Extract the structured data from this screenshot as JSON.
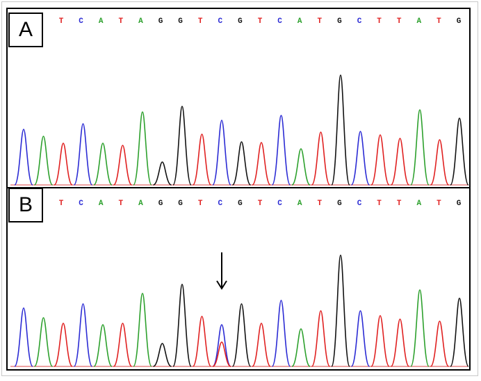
{
  "panels": [
    {
      "label": "A",
      "sequence": [
        "T",
        "C",
        "A",
        "T",
        "A",
        "G",
        "G",
        "T",
        "C",
        "G",
        "T",
        "C",
        "A",
        "T",
        "G",
        "C",
        "T",
        "T",
        "A",
        "T",
        "G"
      ],
      "peaks": [
        {
          "base": "C",
          "height": 80
        },
        {
          "base": "A",
          "height": 70
        },
        {
          "base": "T",
          "height": 60
        },
        {
          "base": "C",
          "height": 88
        },
        {
          "base": "A",
          "height": 60
        },
        {
          "base": "T",
          "height": 57
        },
        {
          "base": "A",
          "height": 105
        },
        {
          "base": "G",
          "height": 33
        },
        {
          "base": "G",
          "height": 113
        },
        {
          "base": "T",
          "height": 73
        },
        {
          "base": "C",
          "height": 93
        },
        {
          "base": "G",
          "height": 62
        },
        {
          "base": "T",
          "height": 61
        },
        {
          "base": "C",
          "height": 100
        },
        {
          "base": "A",
          "height": 52
        },
        {
          "base": "T",
          "height": 76
        },
        {
          "base": "G",
          "height": 158
        },
        {
          "base": "C",
          "height": 77
        },
        {
          "base": "T",
          "height": 72
        },
        {
          "base": "T",
          "height": 67
        },
        {
          "base": "A",
          "height": 108
        },
        {
          "base": "T",
          "height": 65
        },
        {
          "base": "G",
          "height": 96
        }
      ],
      "arrow": null
    },
    {
      "label": "B",
      "sequence": [
        "T",
        "C",
        "A",
        "T",
        "A",
        "G",
        "G",
        "T",
        "C",
        "G",
        "T",
        "C",
        "A",
        "T",
        "G",
        "C",
        "T",
        "T",
        "A",
        "T",
        "G"
      ],
      "peaks": [
        {
          "base": "C",
          "height": 84
        },
        {
          "base": "A",
          "height": 70
        },
        {
          "base": "T",
          "height": 62
        },
        {
          "base": "C",
          "height": 90
        },
        {
          "base": "A",
          "height": 60
        },
        {
          "base": "T",
          "height": 62
        },
        {
          "base": "A",
          "height": 105
        },
        {
          "base": "G",
          "height": 33
        },
        {
          "base": "G",
          "height": 118
        },
        {
          "base": "T",
          "height": 72
        },
        {
          "base": "C",
          "height": 60
        },
        {
          "base": "T",
          "height": 35
        },
        {
          "base": "G",
          "height": 90
        },
        {
          "base": "T",
          "height": 62
        },
        {
          "base": "C",
          "height": 95
        },
        {
          "base": "A",
          "height": 54
        },
        {
          "base": "T",
          "height": 80
        },
        {
          "base": "G",
          "height": 160
        },
        {
          "base": "C",
          "height": 80
        },
        {
          "base": "T",
          "height": 73
        },
        {
          "base": "T",
          "height": 68
        },
        {
          "base": "A",
          "height": 110
        },
        {
          "base": "T",
          "height": 65
        },
        {
          "base": "G",
          "height": 98
        }
      ],
      "arrow": {
        "peak_index": 10
      }
    }
  ],
  "chart_data": {
    "type": "line",
    "title": "",
    "xlabel": "",
    "ylabel": "",
    "base_colors": {
      "A": "#2ca02c",
      "C": "#2b2bd4",
      "G": "#111111",
      "T": "#e02020"
    },
    "panels": [
      {
        "name": "A",
        "called_sequence": "TCATAGGTCGTCATGCTTATG",
        "peak_bases": [
          "C",
          "A",
          "T",
          "C",
          "A",
          "T",
          "A",
          "G",
          "G",
          "T",
          "C",
          "G",
          "T",
          "C",
          "A",
          "T",
          "G",
          "C",
          "T",
          "T",
          "A",
          "T",
          "G"
        ],
        "peak_heights": [
          80,
          70,
          60,
          88,
          60,
          57,
          105,
          33,
          113,
          73,
          93,
          62,
          61,
          100,
          52,
          76,
          158,
          77,
          72,
          67,
          108,
          65,
          96
        ]
      },
      {
        "name": "B",
        "called_sequence": "TCATAGGTCGTCATGCTTATG",
        "peak_bases": [
          "C",
          "A",
          "T",
          "C",
          "A",
          "T",
          "A",
          "G",
          "G",
          "T",
          "C",
          "T",
          "G",
          "T",
          "C",
          "A",
          "T",
          "G",
          "C",
          "T",
          "T",
          "A",
          "T",
          "G"
        ],
        "peak_heights": [
          84,
          70,
          62,
          90,
          60,
          62,
          105,
          33,
          118,
          72,
          60,
          35,
          90,
          62,
          95,
          54,
          80,
          160,
          80,
          73,
          68,
          110,
          65,
          98
        ],
        "annotation": "arrow marking overlapping C/T peak"
      }
    ]
  }
}
